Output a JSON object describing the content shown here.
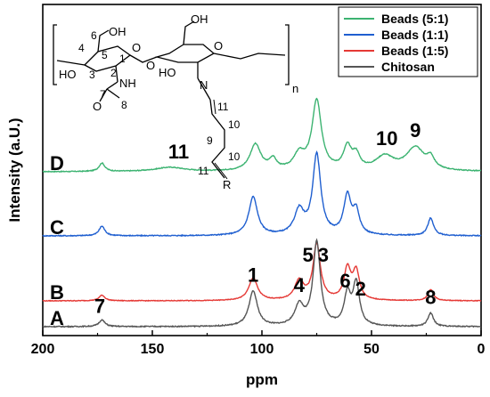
{
  "chart_data": {
    "type": "line",
    "xlabel": "ppm",
    "ylabel": "Intensity (a.U.)",
    "xlim": [
      200,
      0
    ],
    "x_reversed": true,
    "xticks": [
      "200",
      "150",
      "100",
      "50",
      "0"
    ],
    "legend_position": "top-right",
    "series": [
      {
        "name": "Beads (5:1)",
        "trace": "D",
        "color": "#3cb371",
        "peaks": [
          {
            "ppm": 173,
            "height": 0.12,
            "width": 1.6
          },
          {
            "ppm": 142,
            "height": 0.06,
            "width": 8
          },
          {
            "ppm": 103,
            "height": 0.38,
            "width": 3
          },
          {
            "ppm": 95,
            "height": 0.15,
            "width": 2
          },
          {
            "ppm": 83,
            "height": 0.22,
            "width": 3
          },
          {
            "ppm": 75,
            "height": 1.0,
            "width": 2.6
          },
          {
            "ppm": 61,
            "height": 0.32,
            "width": 2.2
          },
          {
            "ppm": 57,
            "height": 0.2,
            "width": 2
          },
          {
            "ppm": 44,
            "height": 0.2,
            "width": 5
          },
          {
            "ppm": 30,
            "height": 0.33,
            "width": 5
          },
          {
            "ppm": 23,
            "height": 0.15,
            "width": 2
          }
        ]
      },
      {
        "name": "Beads (1:1)",
        "trace": "C",
        "color": "#1f5fd0",
        "peaks": [
          {
            "ppm": 173,
            "height": 0.12,
            "width": 1.6
          },
          {
            "ppm": 104,
            "height": 0.48,
            "width": 2.4
          },
          {
            "ppm": 83,
            "height": 0.3,
            "width": 2.6
          },
          {
            "ppm": 75,
            "height": 1.0,
            "width": 2.2
          },
          {
            "ppm": 61,
            "height": 0.48,
            "width": 2
          },
          {
            "ppm": 57,
            "height": 0.28,
            "width": 1.8
          },
          {
            "ppm": 23,
            "height": 0.22,
            "width": 1.6
          }
        ]
      },
      {
        "name": "Beads (1:5)",
        "trace": "B",
        "color": "#e53935",
        "peaks": [
          {
            "ppm": 173,
            "height": 0.1,
            "width": 1.6
          },
          {
            "ppm": 104,
            "height": 0.4,
            "width": 2.4
          },
          {
            "ppm": 83,
            "height": 0.34,
            "width": 2.4
          },
          {
            "ppm": 75,
            "height": 1.0,
            "width": 2.0
          },
          {
            "ppm": 61,
            "height": 0.55,
            "width": 1.9
          },
          {
            "ppm": 57,
            "height": 0.5,
            "width": 1.8
          },
          {
            "ppm": 23,
            "height": 0.2,
            "width": 1.5
          }
        ]
      },
      {
        "name": "Chitosan",
        "trace": "A",
        "color": "#555555",
        "peaks": [
          {
            "ppm": 173,
            "height": 0.08,
            "width": 1.6
          },
          {
            "ppm": 104,
            "height": 0.42,
            "width": 2.3
          },
          {
            "ppm": 83,
            "height": 0.24,
            "width": 2.4
          },
          {
            "ppm": 75,
            "height": 1.0,
            "width": 2.0
          },
          {
            "ppm": 61,
            "height": 0.36,
            "width": 1.8
          },
          {
            "ppm": 57,
            "height": 0.5,
            "width": 1.8
          },
          {
            "ppm": 23,
            "height": 0.16,
            "width": 1.5
          }
        ]
      }
    ],
    "peak_labels": [
      {
        "text": "7",
        "ppm": 174,
        "trace": "A"
      },
      {
        "text": "1",
        "ppm": 104,
        "trace": "A"
      },
      {
        "text": "4",
        "ppm": 83,
        "trace": "A"
      },
      {
        "text": "5",
        "ppm": 79,
        "trace": "A"
      },
      {
        "text": "3",
        "ppm": 72,
        "trace": "A"
      },
      {
        "text": "6",
        "ppm": 62,
        "trace": "A"
      },
      {
        "text": "2",
        "ppm": 55,
        "trace": "A"
      },
      {
        "text": "8",
        "ppm": 23,
        "trace": "A"
      },
      {
        "text": "11",
        "ppm": 138,
        "trace": "D"
      },
      {
        "text": "10",
        "ppm": 43,
        "trace": "D"
      },
      {
        "text": "9",
        "ppm": 30,
        "trace": "D"
      }
    ],
    "structure": {
      "n_label": "n",
      "r_label": "R",
      "n_atom": "N",
      "atom_numbers": [
        "1",
        "2",
        "3",
        "4",
        "5",
        "6",
        "7",
        "8",
        "9",
        "10",
        "10",
        "11",
        "11"
      ],
      "groups": [
        "OH",
        "HO",
        "NH",
        "O",
        "O",
        "O",
        "O",
        "OH",
        "HO"
      ]
    }
  }
}
